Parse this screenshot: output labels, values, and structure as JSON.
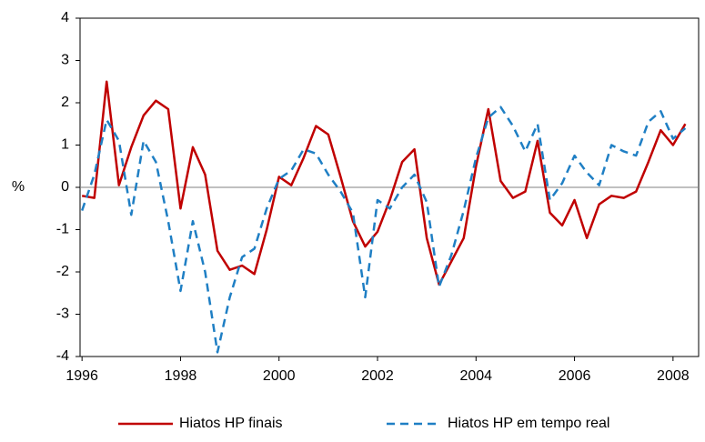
{
  "chart_data": {
    "type": "line",
    "y_label": "%",
    "x": [
      1996,
      1996.25,
      1996.5,
      1996.75,
      1997,
      1997.25,
      1997.5,
      1997.75,
      1998,
      1998.25,
      1998.5,
      1998.75,
      1999,
      1999.25,
      1999.5,
      1999.75,
      2000,
      2000.25,
      2000.5,
      2000.75,
      2001,
      2001.25,
      2001.5,
      2001.75,
      2002,
      2002.25,
      2002.5,
      2002.75,
      2003,
      2003.25,
      2003.5,
      2003.75,
      2004,
      2004.25,
      2004.5,
      2004.75,
      2005,
      2005.25,
      2005.5,
      2005.75,
      2006,
      2006.25,
      2006.5,
      2006.75,
      2007,
      2007.25,
      2007.5,
      2007.75,
      2008,
      2008.25
    ],
    "series": [
      {
        "name": "Hiatos HP finais",
        "color": "#c00000",
        "dash": false,
        "values": [
          -0.2,
          -0.25,
          2.5,
          0.05,
          0.95,
          1.7,
          2.05,
          1.85,
          -0.5,
          0.95,
          0.3,
          -1.5,
          -1.95,
          -1.85,
          -2.05,
          -1.0,
          0.25,
          0.05,
          0.7,
          1.45,
          1.25,
          0.25,
          -0.8,
          -1.4,
          -1.05,
          -0.3,
          0.6,
          0.9,
          -1.2,
          -2.3,
          -1.75,
          -1.2,
          0.5,
          1.85,
          0.15,
          -0.25,
          -0.1,
          1.1,
          -0.6,
          -0.9,
          -0.3,
          -1.2,
          -0.4,
          -0.2,
          -0.25,
          -0.1,
          0.6,
          1.35,
          1.0,
          1.5
        ]
      },
      {
        "name": "Hiatos HP em tempo real",
        "color": "#1f7fc4",
        "dash": true,
        "values": [
          -0.55,
          0.3,
          1.6,
          1.1,
          -0.65,
          1.1,
          0.6,
          -0.8,
          -2.45,
          -0.8,
          -2.0,
          -3.9,
          -2.6,
          -1.65,
          -1.45,
          -0.5,
          0.2,
          0.4,
          0.9,
          0.8,
          0.3,
          -0.1,
          -0.6,
          -2.6,
          -0.3,
          -0.5,
          0.0,
          0.3,
          -0.35,
          -2.35,
          -1.6,
          -0.55,
          0.7,
          1.65,
          1.9,
          1.45,
          0.85,
          1.5,
          -0.3,
          0.1,
          0.75,
          0.35,
          0.05,
          1.0,
          0.85,
          0.75,
          1.55,
          1.8,
          1.15,
          1.4
        ]
      }
    ],
    "xlim": [
      1995.96,
      2008.52
    ],
    "xticks": [
      1996,
      1998,
      2000,
      2002,
      2004,
      2006,
      2008
    ],
    "ylim": [
      -4,
      4
    ],
    "yticks": [
      -4,
      -3,
      -2,
      -1,
      0,
      1,
      2,
      3,
      4
    ],
    "zero_line": true,
    "legend": "bottom"
  }
}
